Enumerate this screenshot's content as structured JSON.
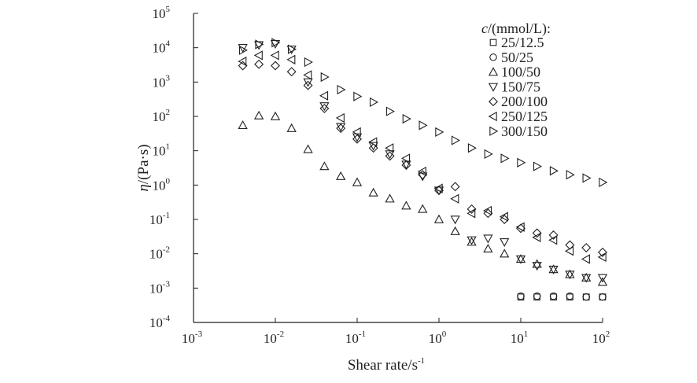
{
  "chart_data": {
    "type": "scatter",
    "x_scale": "log",
    "y_scale": "log",
    "xlim": [
      0.001,
      100
    ],
    "ylim": [
      0.0001,
      100000
    ],
    "x_ticks": [
      {
        "value": 0.001,
        "base": "10",
        "exp": "-3"
      },
      {
        "value": 0.01,
        "base": "10",
        "exp": "-2"
      },
      {
        "value": 0.1,
        "base": "10",
        "exp": "-1"
      },
      {
        "value": 1,
        "base": "10",
        "exp": "0"
      },
      {
        "value": 10,
        "base": "10",
        "exp": "1"
      },
      {
        "value": 100,
        "base": "10",
        "exp": "2"
      }
    ],
    "y_ticks": [
      {
        "value": 0.0001,
        "base": "10",
        "exp": "-4"
      },
      {
        "value": 0.001,
        "base": "10",
        "exp": "-3"
      },
      {
        "value": 0.01,
        "base": "10",
        "exp": "-2"
      },
      {
        "value": 0.1,
        "base": "10",
        "exp": "-1"
      },
      {
        "value": 1,
        "base": "10",
        "exp": "0"
      },
      {
        "value": 10,
        "base": "10",
        "exp": "1"
      },
      {
        "value": 100,
        "base": "10",
        "exp": "2"
      },
      {
        "value": 1000,
        "base": "10",
        "exp": "3"
      },
      {
        "value": 10000,
        "base": "10",
        "exp": "4"
      },
      {
        "value": 100000,
        "base": "10",
        "exp": "5"
      }
    ],
    "xlabel": {
      "main": "Shear rate/s",
      "sup": "-1"
    },
    "ylabel": {
      "symbol": "η",
      "unit": "/(Pa·s)"
    },
    "legend": {
      "title_var": "c",
      "title_rest": "/(mmol/L):",
      "placement": "top-right"
    },
    "grid": false,
    "series": [
      {
        "name": "25/12.5",
        "marker": "square",
        "points": [
          [
            10,
            0.00055
          ],
          [
            15.8,
            0.00055
          ],
          [
            25.1,
            0.00055
          ],
          [
            39.8,
            0.00055
          ],
          [
            63.1,
            0.00055
          ],
          [
            100,
            0.00055
          ]
        ]
      },
      {
        "name": "50/25",
        "marker": "circle",
        "points": [
          [
            10,
            0.00058
          ],
          [
            15.8,
            0.00058
          ],
          [
            25.1,
            0.00058
          ],
          [
            39.8,
            0.00058
          ],
          [
            63.1,
            0.00055
          ],
          [
            100,
            0.00055
          ]
        ]
      },
      {
        "name": "100/50",
        "marker": "triangle-up",
        "points": [
          [
            0.004,
            55
          ],
          [
            0.0063,
            105
          ],
          [
            0.01,
            100
          ],
          [
            0.0158,
            45
          ],
          [
            0.0251,
            11
          ],
          [
            0.0398,
            3.5
          ],
          [
            0.0631,
            1.8
          ],
          [
            0.1,
            1.2
          ],
          [
            0.158,
            0.6
          ],
          [
            0.251,
            0.4
          ],
          [
            0.398,
            0.25
          ],
          [
            0.631,
            0.2
          ],
          [
            1,
            0.1
          ],
          [
            1.58,
            0.045
          ],
          [
            2.51,
            0.022
          ],
          [
            3.98,
            0.014
          ],
          [
            6.31,
            0.01
          ],
          [
            10,
            0.007
          ],
          [
            15.8,
            0.005
          ],
          [
            25.1,
            0.0035
          ],
          [
            39.8,
            0.0025
          ],
          [
            63.1,
            0.002
          ],
          [
            100,
            0.0015
          ]
        ]
      },
      {
        "name": "150/75",
        "marker": "triangle-down",
        "points": [
          [
            0.004,
            10000
          ],
          [
            0.0063,
            12000
          ],
          [
            0.01,
            13000
          ],
          [
            0.0158,
            9000
          ],
          [
            0.0251,
            1000
          ],
          [
            0.0398,
            200
          ],
          [
            0.0631,
            50
          ],
          [
            0.1,
            25
          ],
          [
            0.158,
            14
          ],
          [
            0.251,
            8
          ],
          [
            0.398,
            4
          ],
          [
            0.631,
            1.8
          ],
          [
            1,
            0.7
          ],
          [
            1.58,
            0.1
          ],
          [
            2.51,
            0.025
          ],
          [
            3.98,
            0.028
          ],
          [
            6.31,
            0.022
          ],
          [
            10,
            0.007
          ],
          [
            15.8,
            0.0045
          ],
          [
            25.1,
            0.0035
          ],
          [
            39.8,
            0.0025
          ],
          [
            63.1,
            0.002
          ],
          [
            100,
            0.002
          ]
        ]
      },
      {
        "name": "200/100",
        "marker": "diamond",
        "points": [
          [
            0.004,
            3000
          ],
          [
            0.0063,
            3300
          ],
          [
            0.01,
            3000
          ],
          [
            0.0158,
            2000
          ],
          [
            0.0251,
            800
          ],
          [
            0.0398,
            170
          ],
          [
            0.0631,
            45
          ],
          [
            0.1,
            22
          ],
          [
            0.158,
            12
          ],
          [
            0.251,
            7
          ],
          [
            0.398,
            3.8
          ],
          [
            0.631,
            2
          ],
          [
            1,
            0.7
          ],
          [
            1.58,
            0.9
          ],
          [
            2.51,
            0.2
          ],
          [
            3.98,
            0.15
          ],
          [
            6.31,
            0.1
          ],
          [
            10,
            0.055
          ],
          [
            15.8,
            0.04
          ],
          [
            25.1,
            0.035
          ],
          [
            39.8,
            0.018
          ],
          [
            63.1,
            0.015
          ],
          [
            100,
            0.011
          ]
        ]
      },
      {
        "name": "250/125",
        "marker": "triangle-left",
        "points": [
          [
            0.004,
            4000
          ],
          [
            0.0063,
            6000
          ],
          [
            0.01,
            6000
          ],
          [
            0.0158,
            4500
          ],
          [
            0.0251,
            1600
          ],
          [
            0.0398,
            400
          ],
          [
            0.0631,
            90
          ],
          [
            0.1,
            35
          ],
          [
            0.158,
            18
          ],
          [
            0.251,
            12
          ],
          [
            0.398,
            6
          ],
          [
            0.631,
            2.5
          ],
          [
            1,
            0.8
          ],
          [
            1.58,
            0.4
          ],
          [
            2.51,
            0.15
          ],
          [
            3.98,
            0.18
          ],
          [
            6.31,
            0.12
          ],
          [
            10,
            0.06
          ],
          [
            15.8,
            0.03
          ],
          [
            25.1,
            0.025
          ],
          [
            39.8,
            0.012
          ],
          [
            63.1,
            0.007
          ],
          [
            100,
            0.008
          ]
        ]
      },
      {
        "name": "300/150",
        "marker": "triangle-right",
        "points": [
          [
            0.004,
            8500
          ],
          [
            0.0063,
            12500
          ],
          [
            0.01,
            14000
          ],
          [
            0.0158,
            9000
          ],
          [
            0.0251,
            3800
          ],
          [
            0.0398,
            1400
          ],
          [
            0.0631,
            600
          ],
          [
            0.1,
            380
          ],
          [
            0.158,
            260
          ],
          [
            0.251,
            140
          ],
          [
            0.398,
            85
          ],
          [
            0.631,
            55
          ],
          [
            1,
            35
          ],
          [
            1.58,
            20
          ],
          [
            2.51,
            12
          ],
          [
            3.98,
            8
          ],
          [
            6.31,
            6
          ],
          [
            10,
            4.5
          ],
          [
            15.8,
            3.5
          ],
          [
            25.1,
            2.6
          ],
          [
            39.8,
            2
          ],
          [
            63.1,
            1.6
          ],
          [
            100,
            1.2
          ]
        ]
      }
    ]
  }
}
